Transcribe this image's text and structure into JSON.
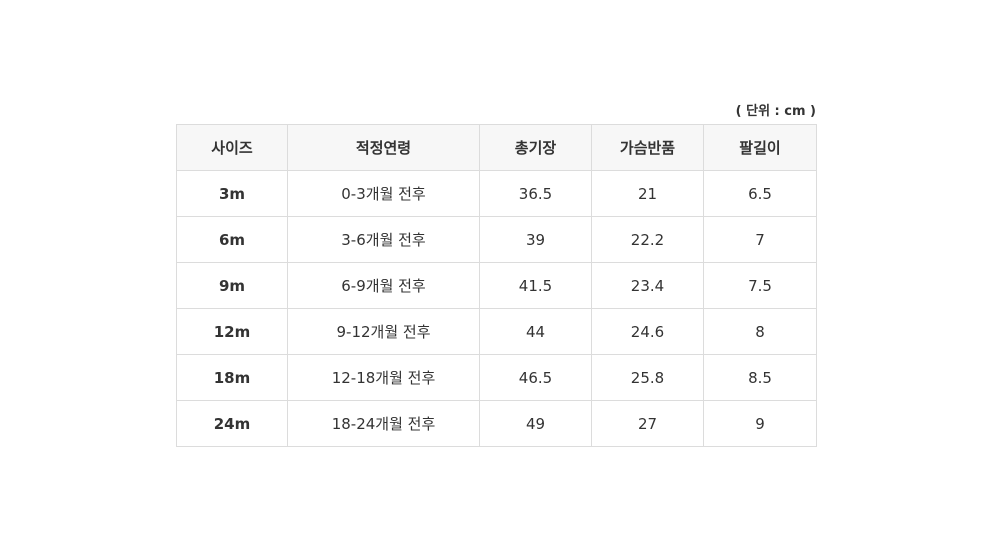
{
  "unit_label": "( 단위 : cm )",
  "headers": [
    "사이즈",
    "적정연령",
    "총기장",
    "가슴반품",
    "팔길이"
  ],
  "rows": [
    [
      "3m",
      "0-3개월 전후",
      "36.5",
      "21",
      "6.5"
    ],
    [
      "6m",
      "3-6개월 전후",
      "39",
      "22.2",
      "7"
    ],
    [
      "9m",
      "6-9개월 전후",
      "41.5",
      "23.4",
      "7.5"
    ],
    [
      "12m",
      "9-12개월 전후",
      "44",
      "24.6",
      "8"
    ],
    [
      "18m",
      "12-18개월 전후",
      "46.5",
      "25.8",
      "8.5"
    ],
    [
      "24m",
      "18-24개월 전후",
      "49",
      "27",
      "9"
    ]
  ]
}
